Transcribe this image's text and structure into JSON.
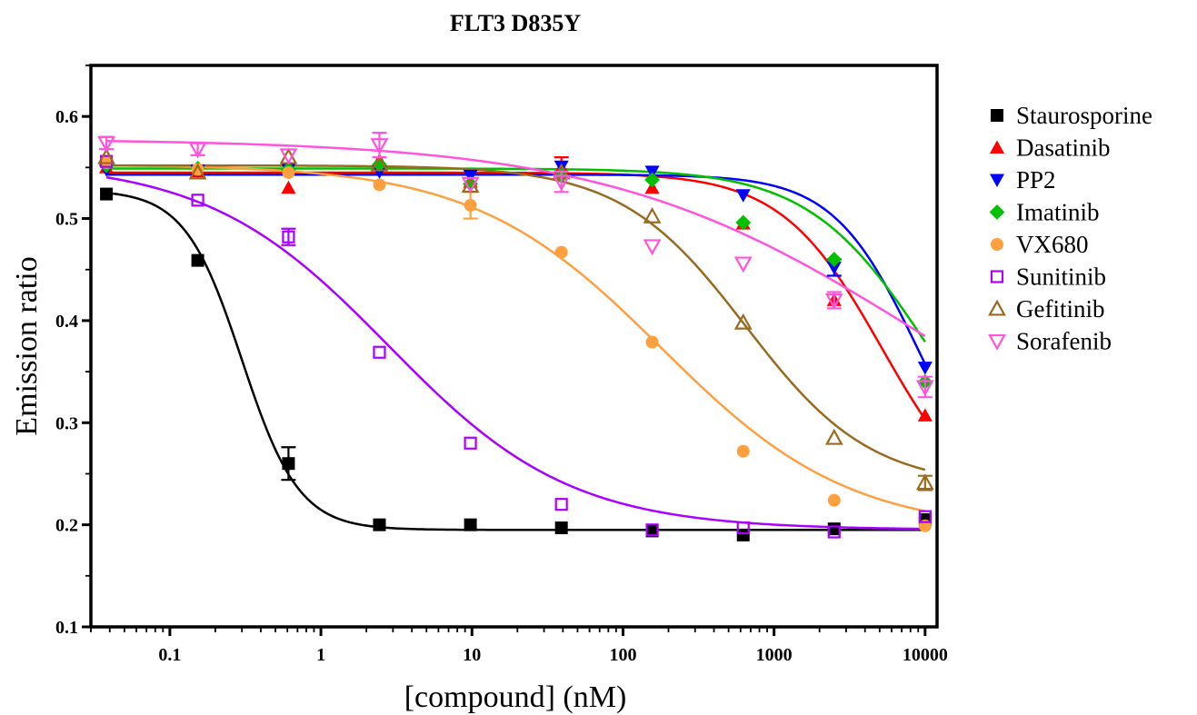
{
  "chart_data": {
    "type": "scatter",
    "title": "FLT3 D835Y",
    "xlabel": "[compound] (nM)",
    "ylabel": "Emission ratio",
    "xscale": "log",
    "xlim": [
      0.03,
      12000
    ],
    "ylim": [
      0.1,
      0.65
    ],
    "x_ticks": [
      0.1,
      1,
      10,
      100,
      1000,
      10000
    ],
    "x_tick_labels": [
      "0.1",
      "1",
      "10",
      "100",
      "1000",
      "10000"
    ],
    "y_ticks": [
      0.1,
      0.2,
      0.3,
      0.4,
      0.5,
      0.6
    ],
    "y_tick_labels": [
      "0.1",
      "0.2",
      "0.3",
      "0.4",
      "0.5",
      "0.6"
    ],
    "grid": false,
    "legend_position": "right",
    "x": [
      0.038,
      0.153,
      0.61,
      2.44,
      9.77,
      39.1,
      156,
      625,
      2500,
      10000
    ],
    "series": [
      {
        "name": "Staurosporine",
        "color": "#000000",
        "marker": "square-filled",
        "values": [
          0.524,
          0.459,
          0.26,
          0.2,
          0.2,
          0.197,
          0.194,
          0.19,
          0.196,
          0.205
        ],
        "errors": [
          0,
          0,
          0.016,
          0,
          0,
          0,
          0,
          0,
          0,
          0
        ],
        "fit": {
          "top": 0.528,
          "bottom": 0.195,
          "ec50": 0.3,
          "hill": 2.3
        }
      },
      {
        "name": "Dasatinib",
        "color": "#ff0000",
        "marker": "triangle-up-filled",
        "values": [
          0.55,
          0.546,
          0.53,
          0.557,
          0.536,
          0.55,
          0.53,
          0.495,
          0.42,
          0.307
        ],
        "errors": [
          0,
          0,
          0,
          0,
          0,
          0.01,
          0,
          0,
          0,
          0
        ],
        "fit": {
          "top": 0.545,
          "bottom": 0.2,
          "ec50": 5200,
          "hill": 1.3
        }
      },
      {
        "name": "PP2",
        "color": "#0000ff",
        "marker": "triangle-down-filled",
        "values": [
          0.548,
          0.547,
          0.548,
          0.546,
          0.542,
          0.551,
          0.546,
          0.523,
          0.452,
          0.354
        ],
        "errors": [
          0,
          0,
          0,
          0,
          0,
          0,
          0,
          0,
          0.008,
          0
        ],
        "fit": {
          "top": 0.543,
          "bottom": 0.2,
          "ec50": 9000,
          "hill": 1.55
        }
      },
      {
        "name": "Imatinib",
        "color": "#00c000",
        "marker": "diamond-filled",
        "values": [
          0.552,
          0.549,
          0.548,
          0.553,
          0.534,
          0.542,
          0.538,
          0.496,
          0.46,
          0.34
        ],
        "errors": [
          0,
          0,
          0,
          0,
          0,
          0,
          0,
          0,
          0,
          0
        ],
        "fit": {
          "top": 0.549,
          "bottom": 0.2,
          "ec50": 10500,
          "hill": 1.1
        }
      },
      {
        "name": "VX680",
        "color": "#ffa040",
        "marker": "circle-filled",
        "values": [
          0.555,
          0.548,
          0.545,
          0.533,
          0.513,
          0.467,
          0.379,
          0.272,
          0.224,
          0.199
        ],
        "errors": [
          0,
          0,
          0,
          0,
          0.013,
          0,
          0,
          0,
          0,
          0
        ],
        "fit": {
          "top": 0.553,
          "bottom": 0.193,
          "ec50": 180,
          "hill": 0.7
        }
      },
      {
        "name": "Sunitinib",
        "color": "#aa00ff",
        "marker": "square-open",
        "values": [
          0.556,
          0.518,
          0.482,
          0.369,
          0.28,
          0.22,
          0.195,
          0.197,
          0.193,
          0.208
        ],
        "errors": [
          0,
          0,
          0.008,
          0,
          0,
          0,
          0,
          0,
          0,
          0
        ],
        "fit": {
          "top": 0.556,
          "bottom": 0.195,
          "ec50": 2.8,
          "hill": 0.72
        }
      },
      {
        "name": "Gefitinib",
        "color": "#9a6a20",
        "marker": "triangle-up-open",
        "values": [
          0.56,
          0.545,
          0.56,
          0.553,
          0.532,
          0.545,
          0.502,
          0.398,
          0.285,
          0.241
        ],
        "errors": [
          0,
          0,
          0,
          0,
          0,
          0,
          0,
          0,
          0,
          0.007
        ],
        "fit": {
          "top": 0.552,
          "bottom": 0.237,
          "ec50": 650,
          "hill": 1.05
        }
      },
      {
        "name": "Sorafenib",
        "color": "#ff55dd",
        "marker": "triangle-down-open",
        "values": [
          0.574,
          0.568,
          0.562,
          0.572,
          0.534,
          0.536,
          0.473,
          0.456,
          0.42,
          0.335
        ],
        "errors": [
          0.006,
          0.006,
          0,
          0.012,
          0,
          0.01,
          0,
          0,
          0.008,
          0.01
        ],
        "fit": {
          "top": 0.578,
          "bottom": 0.2,
          "ec50": 9000,
          "hill": 0.42
        }
      }
    ]
  }
}
